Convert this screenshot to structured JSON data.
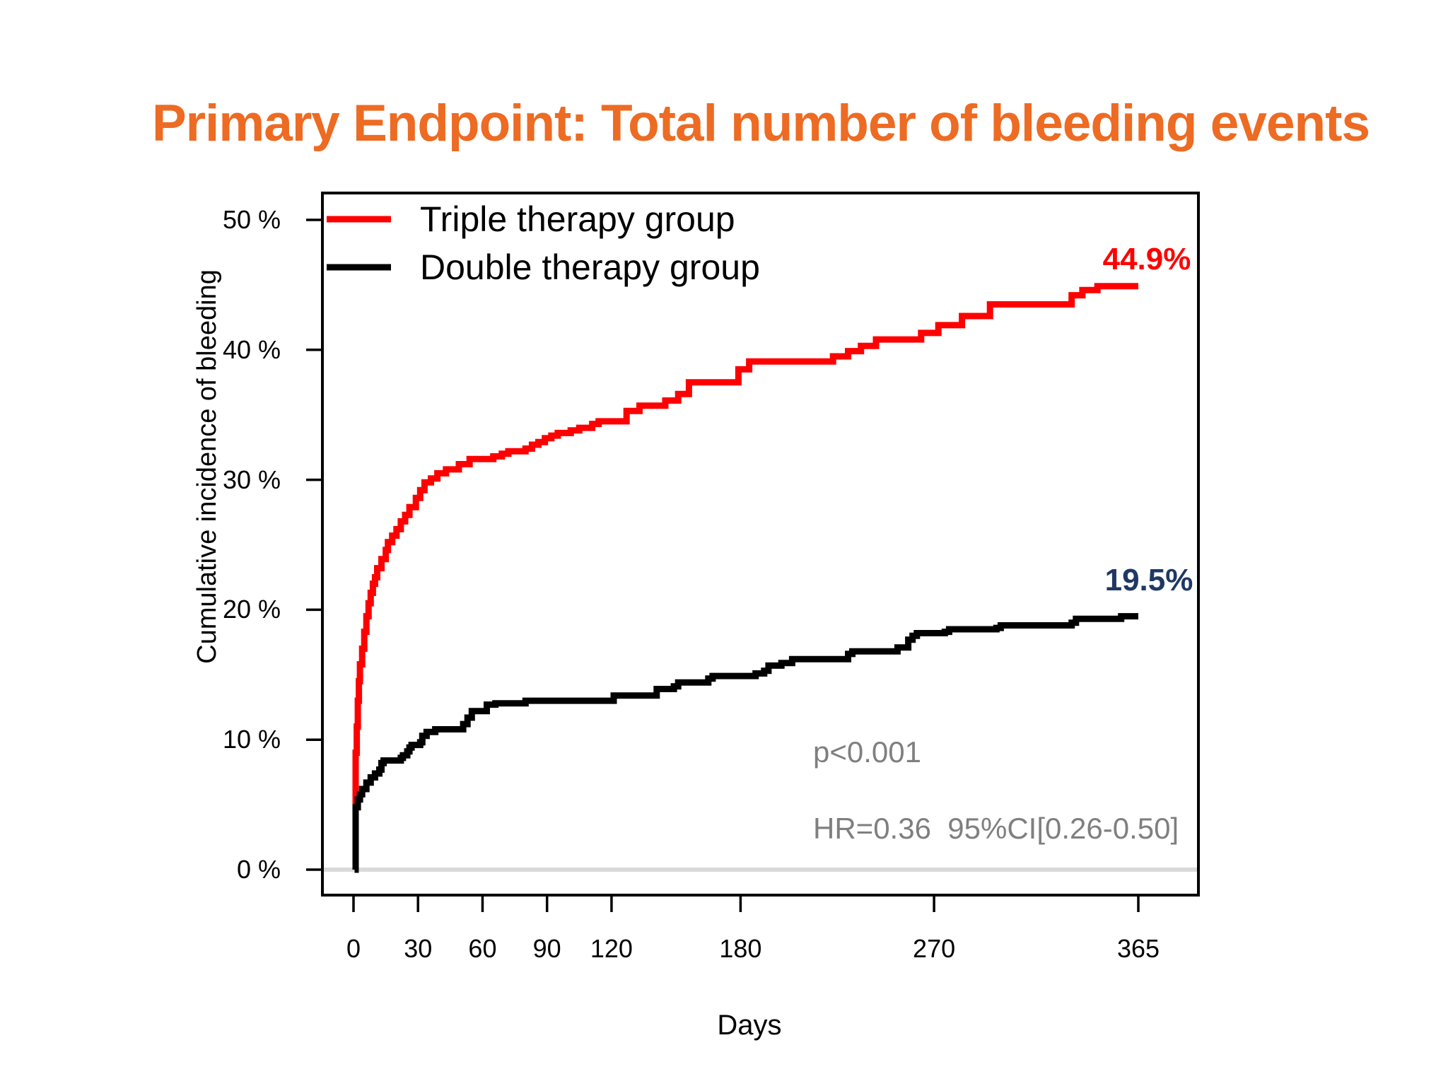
{
  "title": {
    "text": "Primary Endpoint: Total number of bleeding events",
    "color": "#ED6B23"
  },
  "chart_data": {
    "type": "line",
    "subtype": "step-cumulative-incidence",
    "title": "Primary Endpoint: Total number of bleeding events",
    "xlabel": "Days",
    "ylabel": "Cumulative incidence of bleeding",
    "xlim": [
      0,
      365
    ],
    "ylim": [
      0,
      50
    ],
    "grid": false,
    "zero_line_color": "#D9D9D9",
    "axis_color": "#000000",
    "legend_position": "top-left",
    "x_ticks": [
      {
        "value": 0,
        "label": "0"
      },
      {
        "value": 30,
        "label": "30"
      },
      {
        "value": 60,
        "label": "60"
      },
      {
        "value": 90,
        "label": "90"
      },
      {
        "value": 120,
        "label": "120"
      },
      {
        "value": 180,
        "label": "180"
      },
      {
        "value": 270,
        "label": "270"
      },
      {
        "value": 365,
        "label": "365"
      }
    ],
    "y_ticks": [
      {
        "value": 0,
        "label": "0 %"
      },
      {
        "value": 10,
        "label": "10 %"
      },
      {
        "value": 20,
        "label": "20 %"
      },
      {
        "value": 30,
        "label": "30 %"
      },
      {
        "value": 40,
        "label": "40 %"
      },
      {
        "value": 50,
        "label": "50 %"
      }
    ],
    "series": [
      {
        "name": "Triple therapy group",
        "color": "#FF0000",
        "end_label": "44.9%",
        "end_label_color": "#FF0000",
        "final_value_pct": 44.9,
        "points": [
          [
            0.5,
            0
          ],
          [
            1,
            9
          ],
          [
            1.5,
            11
          ],
          [
            2,
            13
          ],
          [
            2.5,
            14.5
          ],
          [
            3,
            15.8
          ],
          [
            4,
            17
          ],
          [
            5,
            18.3
          ],
          [
            6,
            19.5
          ],
          [
            7,
            20.5
          ],
          [
            8,
            21.3
          ],
          [
            9,
            22
          ],
          [
            10,
            22.5
          ],
          [
            11,
            23.2
          ],
          [
            13,
            23.9
          ],
          [
            15,
            24.6
          ],
          [
            16,
            25.2
          ],
          [
            18,
            25.7
          ],
          [
            20,
            26.2
          ],
          [
            22,
            26.8
          ],
          [
            24,
            27.3
          ],
          [
            26,
            27.9
          ],
          [
            29,
            28.6
          ],
          [
            31,
            29.2
          ],
          [
            33,
            29.8
          ],
          [
            36,
            30.1
          ],
          [
            39,
            30.5
          ],
          [
            43,
            30.8
          ],
          [
            49,
            31.2
          ],
          [
            54,
            31.6
          ],
          [
            65,
            31.8
          ],
          [
            69,
            32.0
          ],
          [
            72,
            32.2
          ],
          [
            80,
            32.4
          ],
          [
            83,
            32.7
          ],
          [
            86,
            32.9
          ],
          [
            89,
            33.2
          ],
          [
            92,
            33.4
          ],
          [
            95,
            33.6
          ],
          [
            101,
            33.8
          ],
          [
            105,
            34.0
          ],
          [
            111,
            34.3
          ],
          [
            114,
            34.5
          ],
          [
            127,
            35.3
          ],
          [
            133,
            35.7
          ],
          [
            145,
            36.1
          ],
          [
            151,
            36.6
          ],
          [
            156,
            37.5
          ],
          [
            179,
            38.5
          ],
          [
            184,
            39.1
          ],
          [
            223,
            39.5
          ],
          [
            230,
            39.9
          ],
          [
            236,
            40.3
          ],
          [
            243,
            40.8
          ],
          [
            264,
            41.3
          ],
          [
            272,
            41.9
          ],
          [
            283,
            42.6
          ],
          [
            296,
            43.5
          ],
          [
            334,
            44.2
          ],
          [
            339,
            44.6
          ],
          [
            346,
            44.9
          ],
          [
            365,
            44.9
          ]
        ]
      },
      {
        "name": "Double therapy group",
        "color": "#000000",
        "end_label": "19.5%",
        "end_label_color": "#1F3864",
        "final_value_pct": 19.5,
        "points": [
          [
            0.5,
            0
          ],
          [
            1,
            4.8
          ],
          [
            2,
            5.4
          ],
          [
            3,
            5.8
          ],
          [
            4,
            6.2
          ],
          [
            6,
            6.7
          ],
          [
            8,
            7.1
          ],
          [
            10,
            7.4
          ],
          [
            12,
            7.7
          ],
          [
            13,
            8.2
          ],
          [
            14,
            8.4
          ],
          [
            22,
            8.6
          ],
          [
            23,
            8.8
          ],
          [
            25,
            9.1
          ],
          [
            26,
            9.4
          ],
          [
            27,
            9.6
          ],
          [
            31,
            9.8
          ],
          [
            32,
            10.3
          ],
          [
            34,
            10.6
          ],
          [
            38,
            10.8
          ],
          [
            51,
            11.2
          ],
          [
            53,
            11.7
          ],
          [
            55,
            12.2
          ],
          [
            62,
            12.7
          ],
          [
            66,
            12.8
          ],
          [
            80,
            13.0
          ],
          [
            121,
            13.4
          ],
          [
            141,
            13.9
          ],
          [
            149,
            14.1
          ],
          [
            151,
            14.4
          ],
          [
            165,
            14.7
          ],
          [
            167,
            14.9
          ],
          [
            187,
            15.1
          ],
          [
            191,
            15.3
          ],
          [
            193,
            15.7
          ],
          [
            199,
            15.9
          ],
          [
            204,
            16.2
          ],
          [
            230,
            16.6
          ],
          [
            232,
            16.8
          ],
          [
            253,
            17.1
          ],
          [
            258,
            17.7
          ],
          [
            260,
            18.0
          ],
          [
            262,
            18.2
          ],
          [
            275,
            18.3
          ],
          [
            277,
            18.5
          ],
          [
            299,
            18.6
          ],
          [
            301,
            18.8
          ],
          [
            334,
            19.0
          ],
          [
            336,
            19.3
          ],
          [
            357,
            19.5
          ],
          [
            365,
            19.5
          ]
        ]
      }
    ],
    "annotations": [
      {
        "text": "p<0.001",
        "color": "#7F7F7F"
      },
      {
        "text": "HR=0.36  95%CI[0.26-0.50]",
        "color": "#7F7F7F"
      }
    ]
  }
}
